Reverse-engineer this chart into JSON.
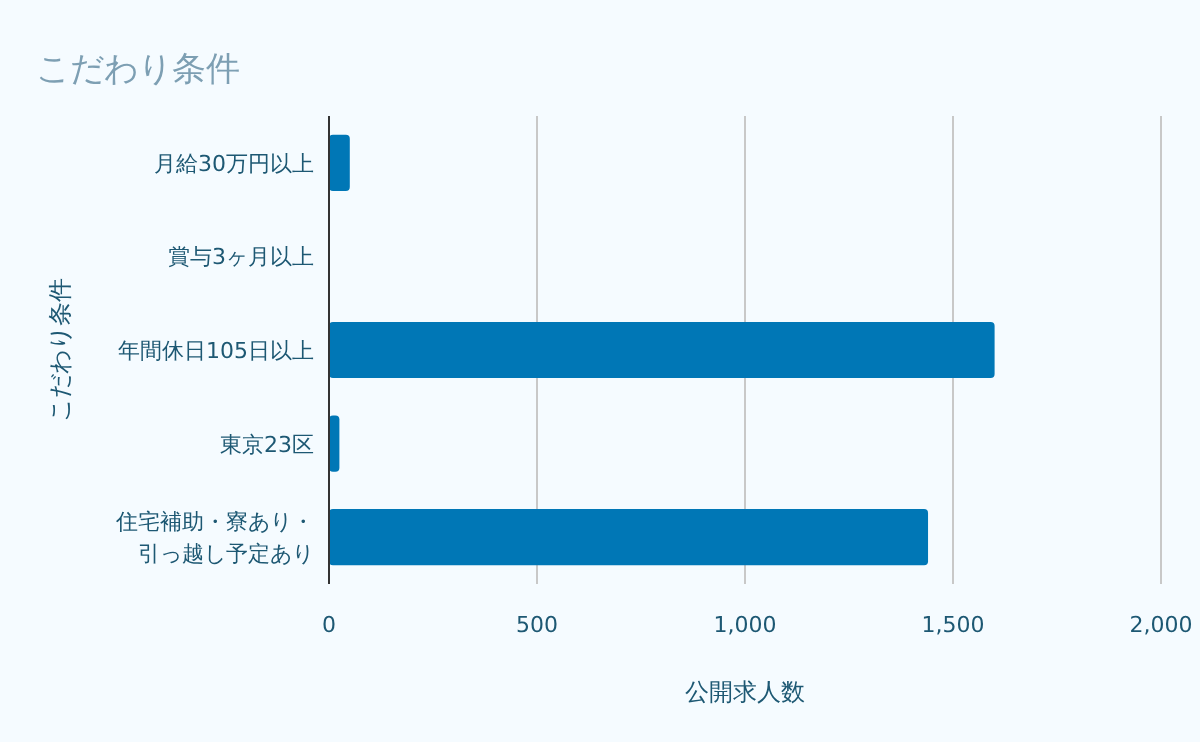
{
  "chart_data": {
    "type": "bar",
    "title": "こだわり条件",
    "orientation": "horizontal",
    "ylabel": "こだわり条件",
    "xlabel": "公開求人数",
    "categories": [
      "月給30万円以上",
      "賞与3ヶ月以上",
      "年間休日105日以上",
      "東京23区",
      "住宅補助・寮あり・引っ越し予定あり"
    ],
    "values": [
      50,
      0,
      1600,
      25,
      1440
    ],
    "color": "#0077b6",
    "xlim": [
      0,
      2000
    ],
    "xticks": [
      0,
      500,
      {
        "value": 1000,
        "label": "1,000"
      },
      {
        "value": 1500,
        "label": "1,500"
      },
      {
        "value": 2000,
        "label": "2,000"
      }
    ],
    "grid": "x"
  }
}
